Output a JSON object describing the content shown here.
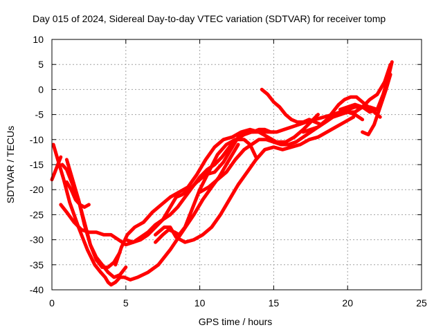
{
  "chart_data": {
    "type": "line",
    "title": "Day 015 of 2024, Sidereal Day-to-day VTEC variation (SDTVAR) for receiver tomp",
    "xlabel": "GPS time / hours",
    "ylabel": "SDTVAR / TECUs",
    "xlim": [
      0,
      25
    ],
    "ylim": [
      -40,
      10
    ],
    "xticks": [
      0,
      5,
      10,
      15,
      20,
      25
    ],
    "yticks": [
      -40,
      -35,
      -30,
      -25,
      -20,
      -15,
      -10,
      -5,
      0,
      5,
      10
    ],
    "xtick_labels": [
      "0",
      "5",
      "10",
      "15",
      "20",
      "25"
    ],
    "ytick_labels": [
      "-40",
      "-35",
      "-30",
      "-25",
      "-20",
      "-15",
      "-10",
      "-5",
      "0",
      "5",
      "10"
    ],
    "grid": true,
    "line_color": "#ff0000",
    "series": [
      {
        "name": "s1",
        "x": [
          0.1,
          0.4,
          0.8,
          1.2,
          1.8,
          2.4,
          2.9,
          3.3,
          3.6,
          3.8,
          4.0,
          4.3,
          4.6,
          4.9,
          5.3,
          5.8,
          6.5,
          7.2,
          8.0,
          8.8,
          9.6,
          10.2,
          10.8,
          11.3,
          11.8,
          12.3,
          12.6
        ],
        "y": [
          -11,
          -14,
          -18,
          -22.5,
          -27.5,
          -32,
          -35,
          -36.5,
          -37.5,
          -38.5,
          -39,
          -38.5,
          -37.5,
          -37.5,
          -38,
          -37.5,
          -36.5,
          -35,
          -32,
          -28.5,
          -25,
          -22,
          -19.5,
          -17.5,
          -15,
          -12.5,
          -11
        ]
      },
      {
        "name": "s2",
        "x": [
          0.6,
          1.0,
          1.5,
          2.0,
          2.5,
          3.0,
          3.5,
          4.0,
          4.5,
          5.0,
          5.5,
          6.0,
          6.5,
          7.0,
          7.5,
          8.0,
          8.5,
          9.0,
          9.5,
          10.0,
          10.5,
          11.0,
          11.5,
          12.0,
          12.5,
          13.0,
          13.5,
          14.0,
          14.5,
          15.0
        ],
        "y": [
          -23,
          -24.5,
          -26.5,
          -28,
          -28.5,
          -28.5,
          -29,
          -29,
          -30,
          -31,
          -30.5,
          -29.5,
          -28.5,
          -27,
          -26,
          -25,
          -23.5,
          -21.5,
          -19.5,
          -17.5,
          -16,
          -15,
          -13.5,
          -11.5,
          -10,
          -9,
          -8.5,
          -8.5,
          -8.5,
          -8.5
        ]
      },
      {
        "name": "s3",
        "x": [
          0.7,
          1.0,
          1.4,
          1.8,
          2.2,
          2.6,
          3.0,
          3.4,
          3.8,
          4.2,
          4.6
        ],
        "y": [
          -15,
          -16,
          -19,
          -22,
          -26.5,
          -31,
          -34,
          -35.5,
          -35.5,
          -34.5,
          -32.5
        ]
      },
      {
        "name": "s4",
        "x": [
          1.0,
          1.4,
          1.8,
          2.2,
          2.6,
          3.0,
          3.4,
          3.8,
          4.2,
          4.6,
          5.0
        ],
        "y": [
          -14,
          -18,
          -22,
          -27,
          -31,
          -33.5,
          -35,
          -36.5,
          -37.5,
          -37,
          -35.5
        ]
      },
      {
        "name": "s5",
        "x": [
          1.0,
          1.3,
          1.6,
          1.9,
          2.2,
          2.5
        ],
        "y": [
          -18.5,
          -20,
          -22,
          -23,
          -23.5,
          -23
        ]
      },
      {
        "name": "s6",
        "x": [
          4.3,
          4.7,
          5.1,
          5.6,
          6.2,
          6.8,
          7.4,
          8.0,
          8.6,
          9.2,
          9.8,
          10.4,
          11.0,
          11.6,
          12.2,
          12.8,
          13.4,
          14.0,
          14.6,
          15.2,
          15.8,
          16.4,
          17.0,
          17.5,
          18.0
        ],
        "y": [
          -35,
          -31.5,
          -29,
          -27.5,
          -26.5,
          -24.5,
          -23,
          -21.5,
          -20.5,
          -19.5,
          -17,
          -14,
          -11.5,
          -10,
          -9.5,
          -8.5,
          -8,
          -8.5,
          -9.5,
          -10.5,
          -10.5,
          -9.5,
          -8,
          -6.5,
          -5
        ]
      },
      {
        "name": "s7",
        "x": [
          5.0,
          5.5,
          6.0,
          6.5,
          7.0,
          7.5,
          8.0,
          8.4,
          8.8,
          9.3,
          9.8,
          10.4,
          11.0,
          11.6,
          12.2,
          12.7,
          13.2,
          13.6,
          14.0,
          14.4,
          14.8,
          15.2,
          15.7,
          16.2,
          16.7,
          17.2,
          17.8,
          18.4,
          19.0,
          19.5,
          20.0,
          20.5,
          21.0,
          21.5,
          22.0
        ],
        "y": [
          -30,
          -30.5,
          -30,
          -29,
          -27.5,
          -26,
          -23.5,
          -21.5,
          -21,
          -20,
          -18.5,
          -17,
          -16.5,
          -14.5,
          -11.5,
          -9,
          -8.5,
          -8.5,
          -8,
          -8,
          -8.5,
          -8.5,
          -8,
          -7.5,
          -7,
          -6.5,
          -6,
          -5.5,
          -5,
          -4.5,
          -4,
          -3.5,
          -3.5,
          -3.5,
          -4
        ]
      },
      {
        "name": "s8",
        "x": [
          7.0,
          7.5,
          7.9,
          8.3,
          8.6,
          9.0,
          9.4,
          10.0,
          10.6,
          11.2,
          11.8,
          12.4,
          13.0,
          13.4,
          13.8
        ],
        "y": [
          -30.5,
          -29,
          -28,
          -28.5,
          -29,
          -27.5,
          -24.5,
          -20,
          -16.5,
          -13,
          -11,
          -10,
          -10,
          -11,
          -13.5
        ]
      },
      {
        "name": "s9",
        "x": [
          7.0,
          7.6,
          8.0,
          8.4,
          9.0,
          9.6,
          10.2,
          10.8,
          11.4,
          12.0,
          12.6,
          13.2,
          13.8,
          14.4,
          15.0,
          15.6,
          16.2,
          16.8,
          17.4,
          18.0,
          18.6,
          19.2,
          19.8,
          20.4
        ],
        "y": [
          -29,
          -27.5,
          -27.5,
          -29.5,
          -30.5,
          -30,
          -29,
          -27.5,
          -25,
          -22,
          -19,
          -16.5,
          -14,
          -12,
          -11.5,
          -12,
          -11.5,
          -11,
          -10,
          -9.5,
          -8.5,
          -7.5,
          -6.5,
          -5.5
        ]
      },
      {
        "name": "s10",
        "x": [
          10.0,
          10.6,
          11.2,
          11.8,
          12.4,
          13.0,
          13.5,
          14.0,
          14.5,
          15.0,
          15.5,
          16.0,
          16.5,
          17.0,
          17.5,
          18.0,
          18.5,
          19.0,
          19.5,
          20.0,
          20.5,
          21.0
        ],
        "y": [
          -20.5,
          -19.5,
          -18,
          -16.5,
          -14,
          -12,
          -11,
          -10,
          -10,
          -10.5,
          -11,
          -11,
          -10.5,
          -9.5,
          -8.5,
          -7.5,
          -6.5,
          -5.5,
          -5,
          -4.5,
          -5,
          -6
        ]
      },
      {
        "name": "s11",
        "x": [
          14.2,
          14.6,
          15.0,
          15.4,
          15.8,
          16.2,
          16.6,
          17.0,
          17.4,
          17.8,
          18.2,
          18.6,
          19.0,
          19.4,
          19.8,
          20.2,
          20.6,
          21.0,
          21.4,
          21.8,
          22.2
        ],
        "y": [
          0,
          -1,
          -2.5,
          -3.5,
          -5,
          -6,
          -6.5,
          -6.5,
          -6,
          -6.5,
          -7,
          -6,
          -4.5,
          -3,
          -2,
          -1.5,
          -1.5,
          -2.5,
          -3.5,
          -4.5,
          -5.5
        ]
      },
      {
        "name": "s12",
        "x": [
          17.0,
          17.5,
          18.0,
          18.5,
          19.0,
          19.5,
          20.0,
          20.5,
          21.0,
          21.5,
          22.0,
          22.5,
          22.9
        ],
        "y": [
          -8.5,
          -8,
          -7.5,
          -6.5,
          -5.5,
          -5,
          -4.5,
          -4.5,
          -3.5,
          -2,
          -1,
          1.5,
          5
        ]
      },
      {
        "name": "s13",
        "x": [
          19.5,
          20.0,
          20.5,
          21.0,
          21.5,
          22.0,
          22.4,
          22.8,
          23.0
        ],
        "y": [
          -4,
          -3.5,
          -3,
          -3.5,
          -4.5,
          -4,
          -1,
          3,
          5.5
        ]
      },
      {
        "name": "s14",
        "x": [
          21.0,
          21.4,
          21.8,
          22.2,
          22.6,
          22.9
        ],
        "y": [
          -8.5,
          -9,
          -7,
          -3.5,
          0,
          3
        ]
      },
      {
        "name": "s15",
        "x": [
          0.0,
          0.2,
          0.4,
          0.6
        ],
        "y": [
          -18,
          -16.5,
          -15,
          -13.5
        ]
      }
    ]
  }
}
